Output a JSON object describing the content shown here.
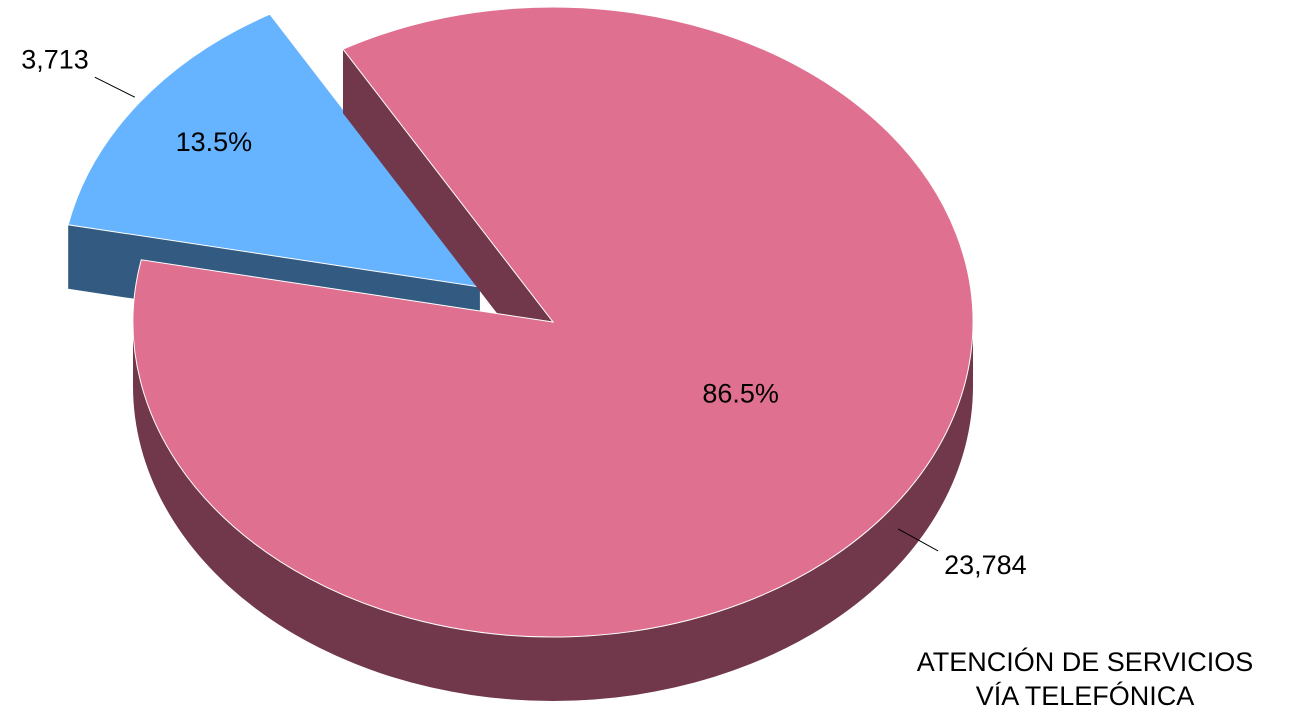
{
  "chart_data": {
    "type": "pie",
    "title": [
      "ATENCIÓN DE SERVICIOS",
      "VÍA TELEFÓNICA"
    ],
    "values": [
      3713,
      23784
    ],
    "value_labels": [
      "3,713",
      "23,784"
    ],
    "percents": [
      13.5,
      86.5
    ],
    "percent_labels": [
      "13.5%",
      "86.5%"
    ],
    "colors": [
      "#66b3ff",
      "#e07090"
    ],
    "side_colors": [
      "#335a80",
      "#70384a"
    ],
    "three_d": true,
    "exploded": [
      true,
      false
    ]
  }
}
